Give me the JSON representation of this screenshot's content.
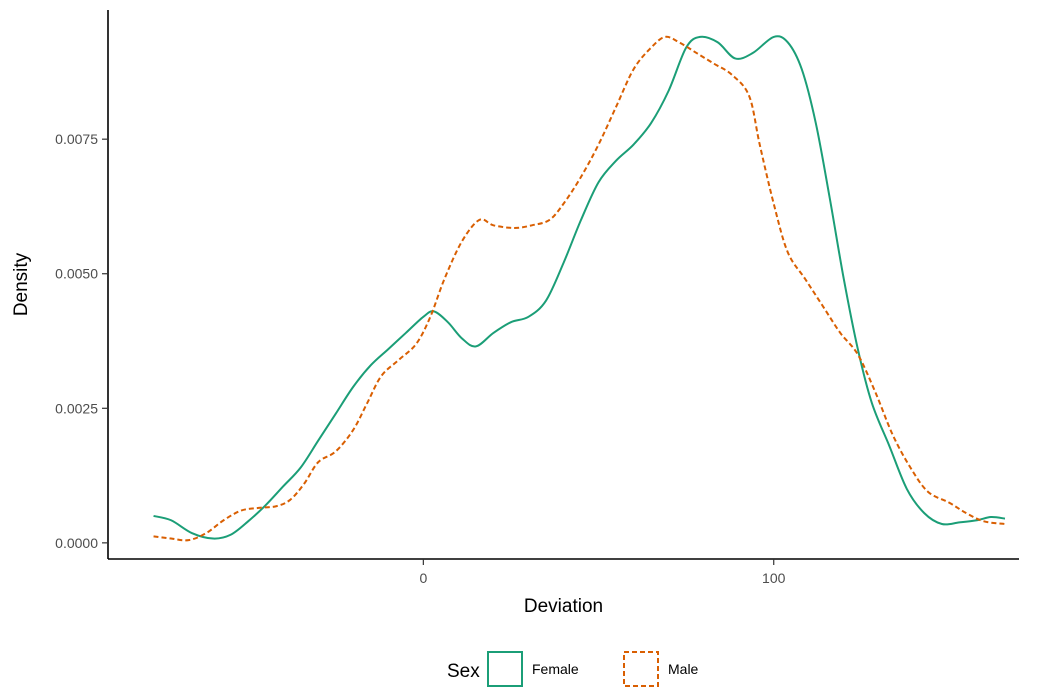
{
  "chart_data": {
    "type": "line",
    "xlabel": "Deviation",
    "ylabel": "Density",
    "xlim": [
      -90,
      170
    ],
    "ylim": [
      -0.0003,
      0.0099
    ],
    "x_ticks": [
      {
        "value": 0,
        "label": "0"
      },
      {
        "value": 100,
        "label": "100"
      }
    ],
    "y_ticks": [
      {
        "value": 0.0,
        "label": "0.0000"
      },
      {
        "value": 0.0025,
        "label": "0.0025"
      },
      {
        "value": 0.005,
        "label": "0.0050"
      },
      {
        "value": 0.0075,
        "label": "0.0075"
      }
    ],
    "grid": false,
    "legend": {
      "title": "Sex",
      "position": "bottom"
    },
    "series": [
      {
        "name": "Female",
        "color": "#1b9e77",
        "dash": "solid",
        "points": [
          [
            -77,
            0.0005
          ],
          [
            -72,
            0.00042
          ],
          [
            -66,
            0.00018
          ],
          [
            -60,
            8e-05
          ],
          [
            -55,
            0.00015
          ],
          [
            -50,
            0.0004
          ],
          [
            -45,
            0.0007
          ],
          [
            -40,
            0.00105
          ],
          [
            -35,
            0.0014
          ],
          [
            -30,
            0.0019
          ],
          [
            -25,
            0.0024
          ],
          [
            -20,
            0.0029
          ],
          [
            -15,
            0.0033
          ],
          [
            -10,
            0.0036
          ],
          [
            -5,
            0.0039
          ],
          [
            0,
            0.0042
          ],
          [
            3,
            0.0043
          ],
          [
            7,
            0.0041
          ],
          [
            11,
            0.0038
          ],
          [
            15,
            0.00365
          ],
          [
            20,
            0.0039
          ],
          [
            25,
            0.0041
          ],
          [
            30,
            0.0042
          ],
          [
            35,
            0.0045
          ],
          [
            40,
            0.0052
          ],
          [
            45,
            0.006
          ],
          [
            50,
            0.0067
          ],
          [
            55,
            0.0071
          ],
          [
            60,
            0.0074
          ],
          [
            65,
            0.0078
          ],
          [
            70,
            0.0084
          ],
          [
            75,
            0.0092
          ],
          [
            79,
            0.0094
          ],
          [
            84,
            0.0093
          ],
          [
            89,
            0.009
          ],
          [
            94,
            0.0091
          ],
          [
            100,
            0.0094
          ],
          [
            104,
            0.0093
          ],
          [
            108,
            0.0088
          ],
          [
            112,
            0.0078
          ],
          [
            116,
            0.0064
          ],
          [
            120,
            0.0049
          ],
          [
            124,
            0.0036
          ],
          [
            128,
            0.0026
          ],
          [
            133,
            0.0018
          ],
          [
            138,
            0.001
          ],
          [
            143,
            0.00055
          ],
          [
            148,
            0.00035
          ],
          [
            153,
            0.00038
          ],
          [
            158,
            0.00042
          ],
          [
            162,
            0.00048
          ],
          [
            166,
            0.00045
          ]
        ]
      },
      {
        "name": "Male",
        "color": "#d95f02",
        "dash": "dashed",
        "points": [
          [
            -77,
            0.00012
          ],
          [
            -72,
            8e-05
          ],
          [
            -67,
            5e-05
          ],
          [
            -62,
            0.00018
          ],
          [
            -57,
            0.00042
          ],
          [
            -52,
            0.0006
          ],
          [
            -47,
            0.00065
          ],
          [
            -42,
            0.00068
          ],
          [
            -38,
            0.0008
          ],
          [
            -34,
            0.0011
          ],
          [
            -30,
            0.0015
          ],
          [
            -25,
            0.0017
          ],
          [
            -20,
            0.0021
          ],
          [
            -16,
            0.0026
          ],
          [
            -12,
            0.0031
          ],
          [
            -7,
            0.0034
          ],
          [
            -2,
            0.0037
          ],
          [
            2,
            0.0042
          ],
          [
            6,
            0.0049
          ],
          [
            11,
            0.0056
          ],
          [
            16,
            0.006
          ],
          [
            20,
            0.0059
          ],
          [
            26,
            0.00585
          ],
          [
            31,
            0.0059
          ],
          [
            36,
            0.006
          ],
          [
            40,
            0.0063
          ],
          [
            45,
            0.0068
          ],
          [
            50,
            0.0074
          ],
          [
            55,
            0.0081
          ],
          [
            60,
            0.0088
          ],
          [
            65,
            0.0092
          ],
          [
            69,
            0.0094
          ],
          [
            73,
            0.0093
          ],
          [
            78,
            0.0091
          ],
          [
            83,
            0.0089
          ],
          [
            88,
            0.0087
          ],
          [
            93,
            0.0083
          ],
          [
            96,
            0.0074
          ],
          [
            100,
            0.0063
          ],
          [
            104,
            0.0054
          ],
          [
            109,
            0.0049
          ],
          [
            114,
            0.0044
          ],
          [
            119,
            0.0039
          ],
          [
            124,
            0.0035
          ],
          [
            129,
            0.0028
          ],
          [
            134,
            0.002
          ],
          [
            139,
            0.0014
          ],
          [
            144,
            0.00095
          ],
          [
            150,
            0.00075
          ],
          [
            155,
            0.00055
          ],
          [
            160,
            0.0004
          ],
          [
            166,
            0.00035
          ]
        ]
      }
    ]
  }
}
